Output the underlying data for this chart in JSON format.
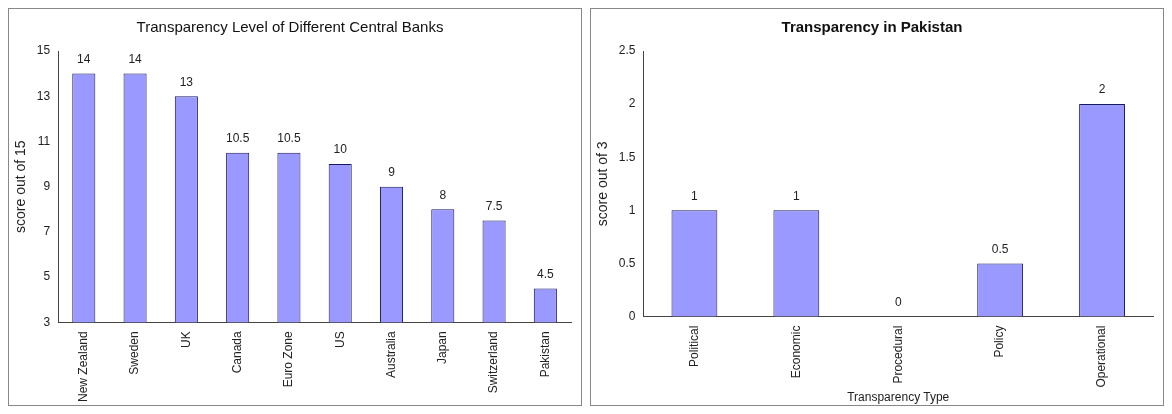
{
  "chart_data": [
    {
      "type": "bar",
      "title": "Transparency Level of Different Central Banks",
      "ylabel": "score out of 15",
      "categories": [
        "New Zealand",
        "Sweden",
        "UK",
        "Canada",
        "Euro Zone",
        "US",
        "Australia",
        "Japan",
        "Switzerland",
        "Pakistan"
      ],
      "values": [
        14,
        14,
        13,
        10.5,
        10.5,
        10,
        9,
        8,
        7.5,
        4.5
      ],
      "color": "#9999ff",
      "ylim": [
        3,
        15
      ],
      "yticks": [
        3,
        5,
        7,
        9,
        11,
        13,
        15
      ],
      "data_labels": true,
      "grid": false,
      "legend": false
    },
    {
      "type": "bar",
      "title": "Transparency in Pakistan",
      "xlabel": "Transparency Type",
      "ylabel": "score out of 3",
      "categories": [
        "Political",
        "Economic",
        "Procedural",
        "Policy",
        "Operational"
      ],
      "values": [
        1,
        1,
        0,
        0.5,
        2
      ],
      "color": "#9999ff",
      "ylim": [
        0,
        2.5
      ],
      "yticks": [
        0,
        0.5,
        1,
        1.5,
        2,
        2.5
      ],
      "data_labels": true,
      "grid": false,
      "legend": false
    }
  ]
}
